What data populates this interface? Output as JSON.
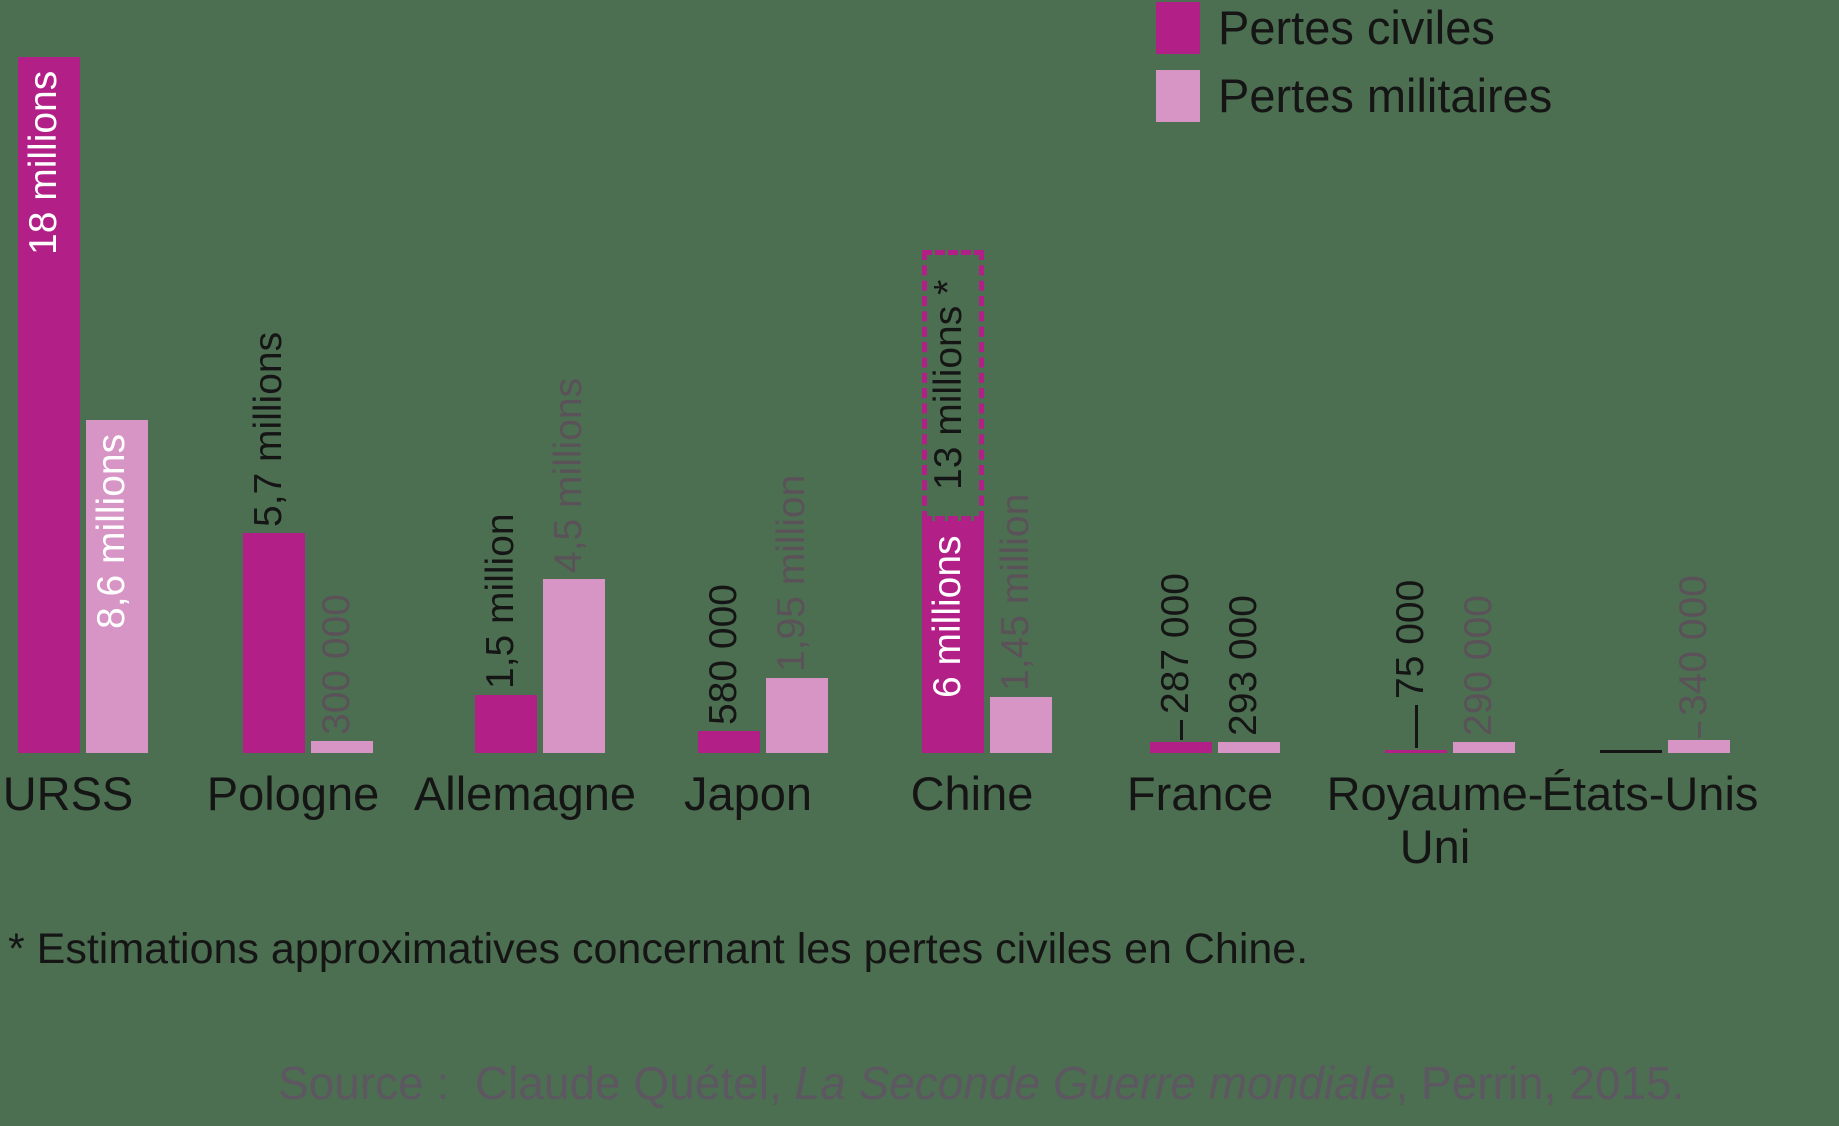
{
  "colors": {
    "background": "#4c6f51",
    "civil": "#b21f87",
    "military": "#d795c5",
    "black_text": "#151515",
    "gray_text": "#5a5258",
    "white_text": "#ffffff",
    "source_text": "#5d5761"
  },
  "legend": {
    "items": [
      {
        "label": "Pertes civiles",
        "series": "civil"
      },
      {
        "label": "Pertes militaires",
        "series": "military"
      }
    ]
  },
  "footnote": "* Estimations approximatives concernant les pertes civiles en Chine.",
  "source": {
    "prefix": "Source :  Claude Quétel, ",
    "book_title": "La Seconde Guerre mondiale",
    "suffix": ", Perrin, 2015."
  },
  "chart_data": {
    "type": "bar",
    "title": "",
    "series": [
      "Pertes civiles",
      "Pertes militaires"
    ],
    "unit": "millions",
    "ylim": [
      0,
      18
    ],
    "grid": false,
    "legend_position": "top-right",
    "value_labels_rotated": true,
    "groups": [
      {
        "country": "URSS",
        "civil": {
          "value": 18,
          "label": "18 millions",
          "label_pos": "inside",
          "label_color": "white"
        },
        "military": {
          "value": 8.6,
          "label": "8,6 millions",
          "label_pos": "inside",
          "label_color": "white"
        }
      },
      {
        "country": "Pologne",
        "civil": {
          "value": 5.7,
          "label": "5,7 millions",
          "label_pos": "above",
          "label_color": "black"
        },
        "military": {
          "value": 0.3,
          "label": "300 000",
          "label_pos": "above",
          "label_color": "gray"
        }
      },
      {
        "country": "Allemagne",
        "civil": {
          "value": 1.5,
          "label": "1,5 million",
          "label_pos": "above",
          "label_color": "black"
        },
        "military": {
          "value": 4.5,
          "label": "4,5 millions",
          "label_pos": "above",
          "label_color": "gray"
        }
      },
      {
        "country": "Japon",
        "civil": {
          "value": 0.58,
          "label": "580 000",
          "label_pos": "above",
          "label_color": "black"
        },
        "military": {
          "value": 1.95,
          "label": "1,95 million",
          "label_pos": "above",
          "label_color": "gray"
        }
      },
      {
        "country": "Chine",
        "civil": {
          "value": 6,
          "label": "6 millions",
          "label_pos": "inside",
          "label_color": "white",
          "estimate_to": 13,
          "estimate_label": "13 millions *"
        },
        "military": {
          "value": 1.45,
          "label": "1,45 million",
          "label_pos": "above",
          "label_color": "gray"
        }
      },
      {
        "country": "France",
        "civil": {
          "value": 0.287,
          "label": "287 000",
          "label_pos": "above",
          "label_color": "black",
          "leader": 22
        },
        "military": {
          "value": 0.293,
          "label": "293 000",
          "label_pos": "above",
          "label_color": "black"
        }
      },
      {
        "country": "Royaume-\nUni",
        "civil": {
          "value": 0.075,
          "label": "75 000",
          "label_pos": "above",
          "label_color": "black",
          "leader": 45
        },
        "military": {
          "value": 0.29,
          "label": "290 000",
          "label_pos": "above",
          "label_color": "gray"
        }
      },
      {
        "country": "États-Unis",
        "civil": {
          "value": 0,
          "label": "",
          "style": "baseline-line"
        },
        "military": {
          "value": 0.34,
          "label": "340 000",
          "label_pos": "above",
          "label_color": "gray",
          "leader": 18
        }
      }
    ]
  }
}
